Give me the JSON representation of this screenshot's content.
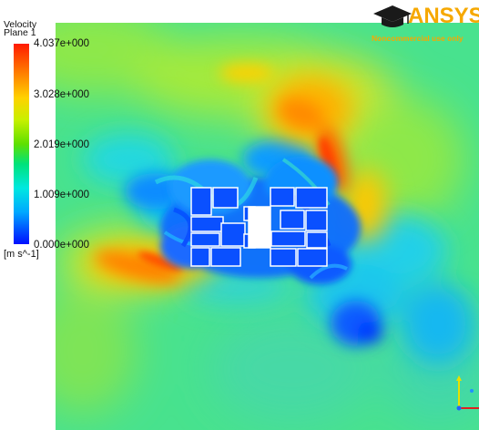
{
  "legend": {
    "variable": "Velocity",
    "location": "Plane 1",
    "levels": [
      "4.037e+000",
      "3.028e+000",
      "2.019e+000",
      "1.009e+000",
      "0.000e+000"
    ],
    "unit": "[m s^-1]",
    "colormap": [
      "#ff1a00",
      "#ffd200",
      "#5fe000",
      "#00e8e0",
      "#0010ff"
    ]
  },
  "logo": {
    "brand": "ANSYS",
    "license": "Noncommercial use only"
  },
  "colors": {
    "high": "#ff2000",
    "mid": "#3fe080",
    "low": "#0020ff",
    "obstacle": "#ffffff",
    "brand": "#f6a800"
  },
  "icons": {
    "logo_mark": "graduation-cap-icon",
    "triad": "axis-triad-icon"
  }
}
